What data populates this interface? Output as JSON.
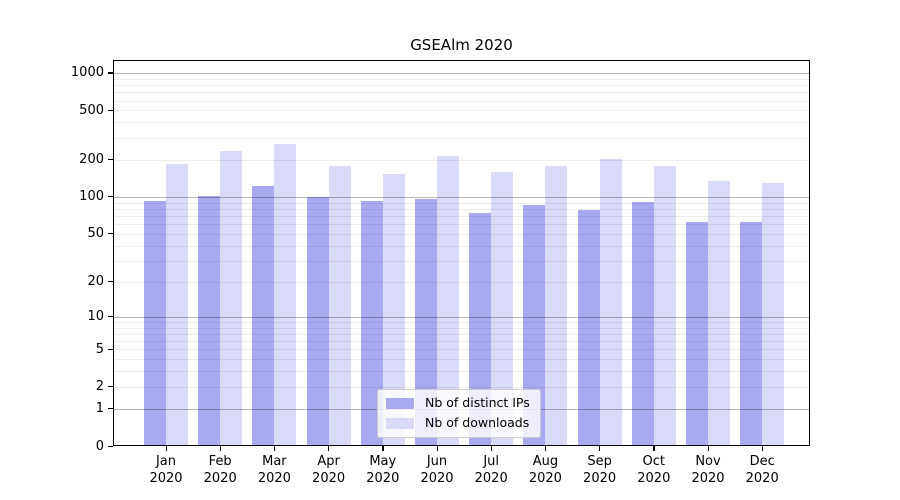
{
  "title": "GSEAlm 2020",
  "chart_data": {
    "type": "bar",
    "title": "GSEAlm 2020",
    "scale": "log1p",
    "grid": "both",
    "legend_position": "lower center",
    "categories": [
      "Jan",
      "Feb",
      "Mar",
      "Apr",
      "May",
      "Jun",
      "Jul",
      "Aug",
      "Sep",
      "Oct",
      "Nov",
      "Dec"
    ],
    "x_tick_year": "2020",
    "series": [
      {
        "name": "Nb of distinct IPs",
        "color": "#a9a9f2",
        "values": [
          93,
          101,
          123,
          100,
          93,
          95,
          74,
          85,
          78,
          91,
          62,
          62
        ]
      },
      {
        "name": "Nb of downloads",
        "color": "#d9d9f8",
        "values": [
          185,
          234,
          265,
          176,
          154,
          214,
          158,
          177,
          201,
          178,
          133,
          128
        ]
      }
    ],
    "y_ticks": [
      0,
      1,
      2,
      5,
      10,
      20,
      50,
      100,
      200,
      500,
      1000
    ],
    "y_major_grid": [
      1,
      10,
      100,
      1000
    ],
    "y_minor_grid": [
      2,
      3,
      4,
      5,
      6,
      7,
      8,
      9,
      20,
      30,
      40,
      50,
      60,
      70,
      80,
      90,
      200,
      300,
      400,
      500,
      600,
      700,
      800,
      900
    ],
    "ylim": [
      0,
      1260
    ],
    "axis_color": "#000000",
    "major_grid_color": "rgba(0,0,0,0.28)",
    "minor_grid_color": "rgba(0,0,0,0.075)"
  }
}
